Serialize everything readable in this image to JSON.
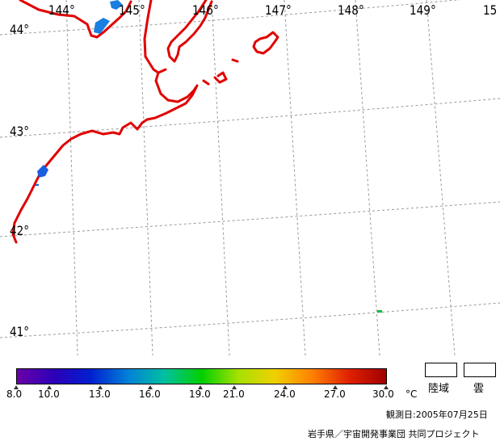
{
  "map": {
    "longitude_labels": [
      "144°",
      "145°",
      "146°",
      "147°",
      "148°",
      "149°",
      "15"
    ],
    "latitude_labels": [
      "44°",
      "43°",
      "42°",
      "41°"
    ],
    "coastline_color": "#e00000",
    "grid_color": "#9a9a9a"
  },
  "legend": {
    "tick_labels": [
      "8.0",
      "10.0",
      "13.0",
      "16.0",
      "19.0",
      "21.0",
      "24.0",
      "27.0",
      "30.0"
    ],
    "unit": "°C",
    "range": [
      8.0,
      30.0
    ],
    "scale_colors": [
      "#6a00a8",
      "#2d00b8",
      "#0020d0",
      "#0080d8",
      "#00c0a0",
      "#00d000",
      "#a8e000",
      "#f0d000",
      "#ff8000",
      "#e02000",
      "#a00000"
    ],
    "land_label": "陸域",
    "cloud_label": "雲"
  },
  "observation_date": "観測日:2005年07月25日",
  "credit": "岩手県／宇宙開発事業団 共同プロジェクト"
}
